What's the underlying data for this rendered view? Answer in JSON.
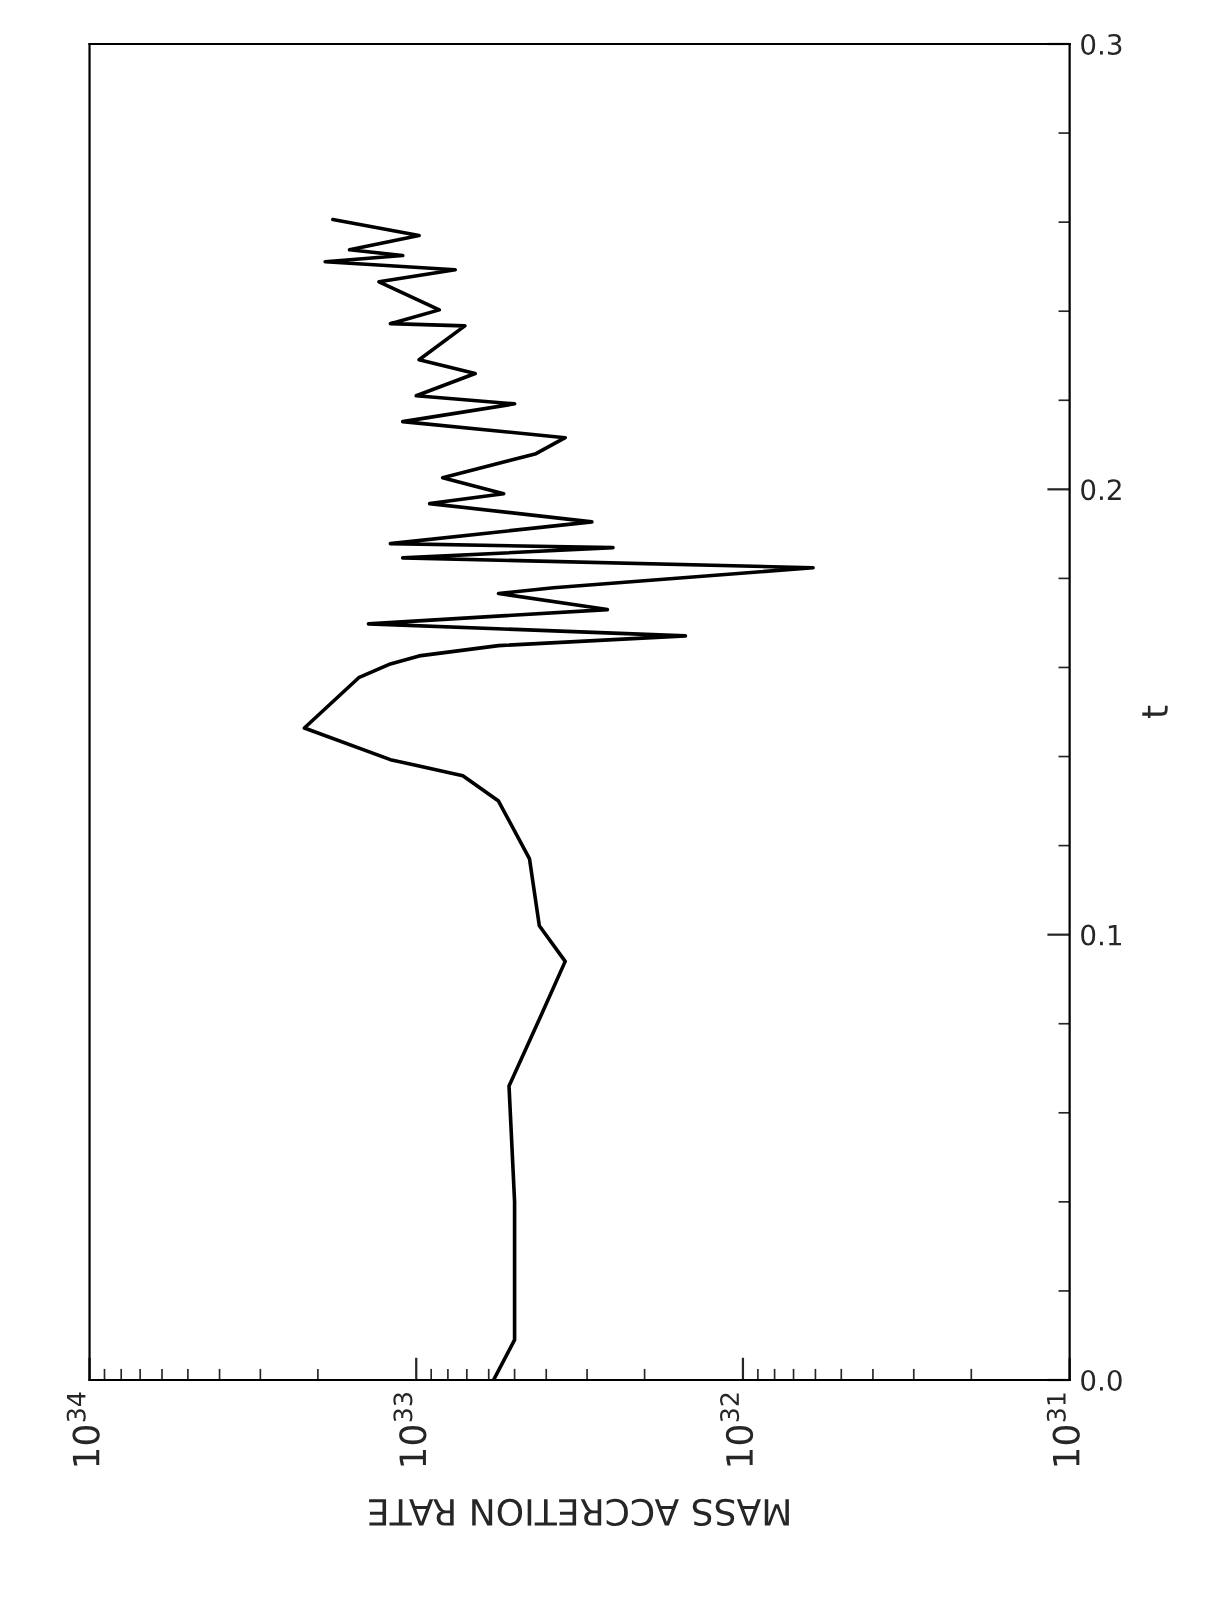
{
  "chart_data": {
    "type": "line",
    "xlabel": "MASS ACCRETION RATE",
    "ylabel": "t",
    "log": "x",
    "x": [
      5.8e+32,
      5e+32,
      5e+32,
      5.2e+32,
      4.2e+32,
      3.5e+32,
      4.2e+32,
      4.5e+32,
      5.6e+32,
      7.2e+32,
      1.2e+33,
      2.2e+33,
      1.5e+33,
      1.2e+33,
      9.8e+32,
      5.6e+32,
      1.5e+32,
      1.4e+33,
      2.6e+32,
      5.6e+32,
      3.8e+32,
      6.1e+31,
      1.1e+33,
      2.5e+32,
      1.2e+33,
      2.9e+32,
      9.1e+32,
      5.4e+32,
      8.3e+32,
      4.3e+32,
      3.5e+32,
      1.1e+33,
      5e+32,
      1e+33,
      6.6e+32,
      9.8e+32,
      7.1e+32,
      1.2e+33,
      8.5e+32,
      1.3e+33,
      7.6e+32,
      1.9e+33,
      1.1e+33,
      1.6e+33,
      9.8e+32,
      1.8e+33
    ],
    "series": [
      {
        "color": "#000000",
        "values": [
          0,
          0.009,
          0.04,
          0.066,
          0.081,
          0.094,
          0.102,
          0.117,
          0.13,
          0.1357,
          0.1393,
          0.1464,
          0.1577,
          0.1608,
          0.1626,
          0.1649,
          0.1671,
          0.1698,
          0.173,
          0.1766,
          0.1779,
          0.1824,
          0.1846,
          0.1869,
          0.1878,
          0.1927,
          0.1968,
          0.199,
          0.2026,
          0.208,
          0.2116,
          0.2152,
          0.2192,
          0.221,
          0.226,
          0.2291,
          0.2367,
          0.2372,
          0.2403,
          0.2466,
          0.2493,
          0.2511,
          0.2525,
          0.2538,
          0.257,
          0.2606
        ]
      }
    ],
    "xlim": [
      1e+34,
      1e+31
    ],
    "xticks": [
      {
        "value": 1e+34,
        "label": "10$^{34}$"
      },
      {
        "value": 1e+33,
        "label": "10$^{33}$"
      },
      {
        "value": 1e+32,
        "label": "10$^{32}$"
      },
      {
        "value": 1e+31,
        "label": "10$^{31}$"
      }
    ],
    "ylim": [
      0,
      0.3
    ],
    "yticks": [
      {
        "value": 0,
        "label": "0.0"
      },
      0.1,
      0.2,
      0.3
    ],
    "grid": false,
    "legend": false,
    "marker": "none",
    "line_style": "solid"
  }
}
